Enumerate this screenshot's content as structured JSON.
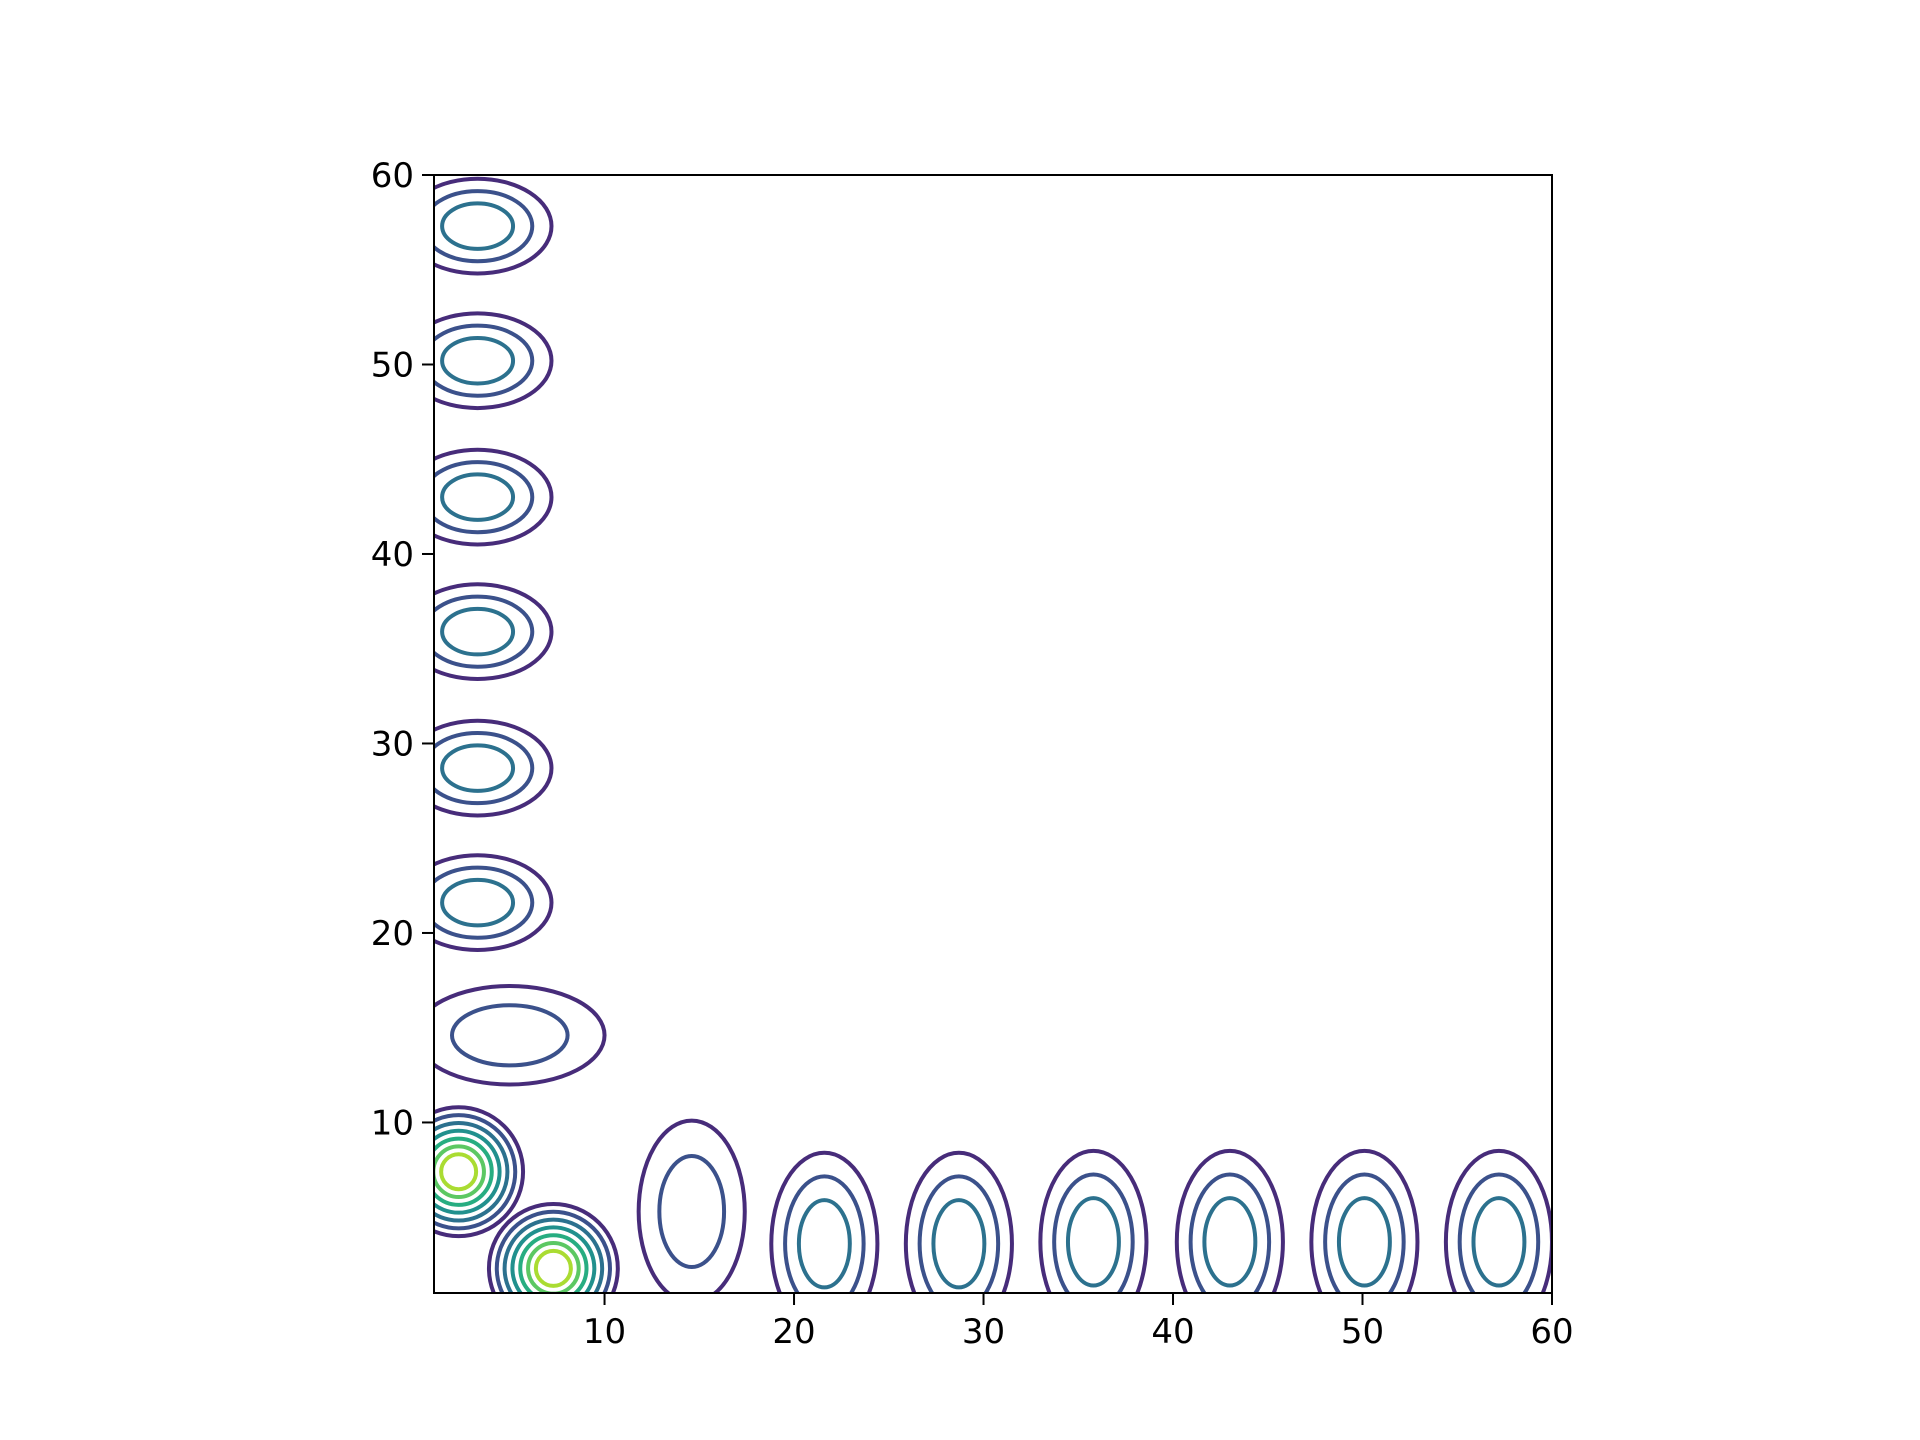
{
  "chart_data": {
    "type": "contour",
    "title": "",
    "xlabel": "",
    "ylabel": "",
    "xlim": [
      1,
      60
    ],
    "ylim": [
      1,
      60
    ],
    "xticks": [
      10,
      20,
      30,
      40,
      50,
      60
    ],
    "yticks": [
      10,
      20,
      30,
      40,
      50,
      60
    ],
    "xtick_labels": [
      "10",
      "20",
      "30",
      "40",
      "50",
      "60"
    ],
    "ytick_labels": [
      "10",
      "20",
      "30",
      "40",
      "50",
      "60"
    ],
    "grid": false,
    "colormap": "viridis",
    "level_colors": [
      "#472c7a",
      "#3b518b",
      "#2c718e",
      "#21908d",
      "#27ad81",
      "#5cc863",
      "#aadc32"
    ],
    "peaks": [
      {
        "x": 2.3,
        "y": 7.4,
        "levels": 7
      },
      {
        "x": 7.3,
        "y": 2.3,
        "levels": 7
      },
      {
        "x": 14.6,
        "y": 5.3,
        "levels": 2
      },
      {
        "x": 21.6,
        "y": 3.6,
        "levels": 3
      },
      {
        "x": 28.7,
        "y": 3.6,
        "levels": 3
      },
      {
        "x": 35.8,
        "y": 3.7,
        "levels": 3
      },
      {
        "x": 43.0,
        "y": 3.7,
        "levels": 3
      },
      {
        "x": 50.1,
        "y": 3.7,
        "levels": 3
      },
      {
        "x": 57.2,
        "y": 3.7,
        "levels": 3
      },
      {
        "x": 5.0,
        "y": 14.6,
        "levels": 2
      },
      {
        "x": 3.3,
        "y": 21.6,
        "levels": 3
      },
      {
        "x": 3.3,
        "y": 28.7,
        "levels": 3
      },
      {
        "x": 3.3,
        "y": 35.9,
        "levels": 3
      },
      {
        "x": 3.3,
        "y": 43.0,
        "levels": 3
      },
      {
        "x": 3.3,
        "y": 50.2,
        "levels": 3
      },
      {
        "x": 3.3,
        "y": 57.3,
        "levels": 3
      }
    ]
  }
}
